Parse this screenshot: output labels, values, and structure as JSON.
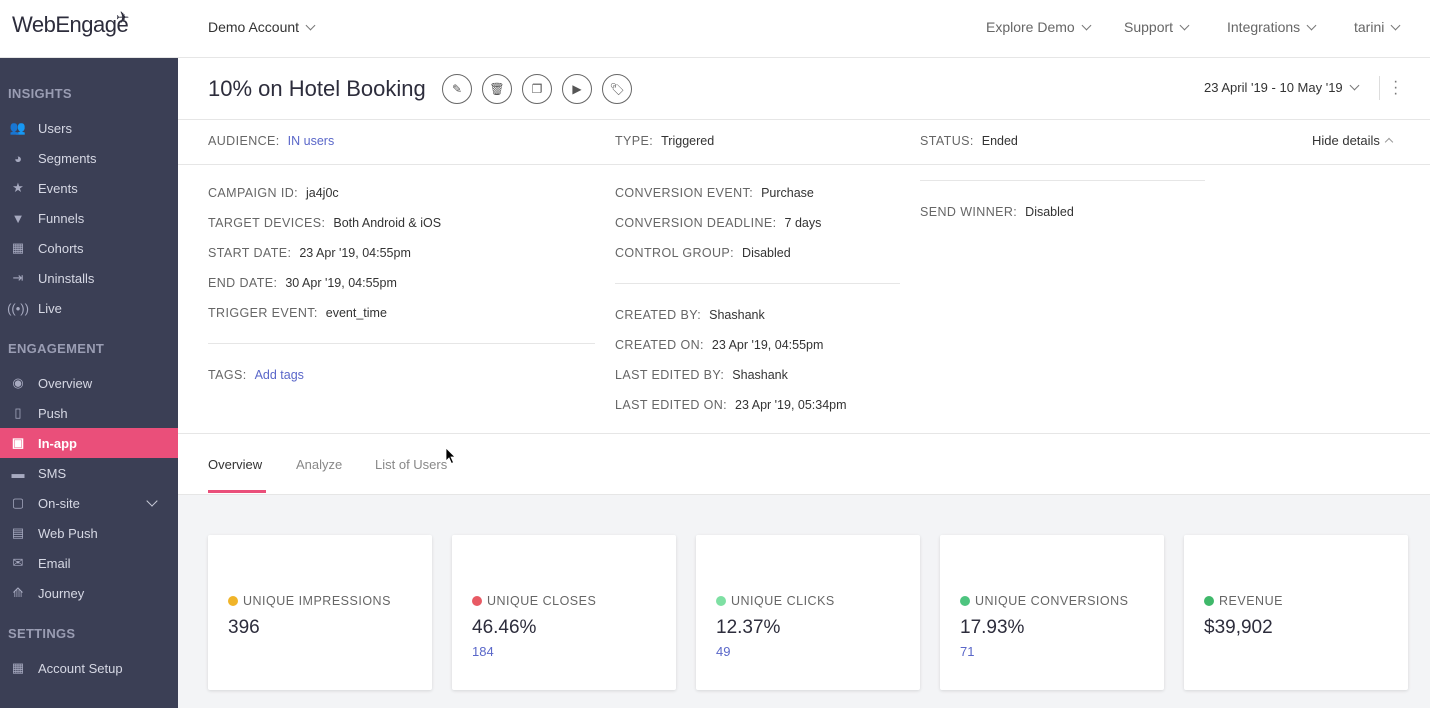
{
  "topbar": {
    "logo": "WebEngage",
    "account": "Demo Account",
    "nav": [
      "Explore Demo",
      "Support",
      "Integrations",
      "tarini"
    ]
  },
  "sidebar": {
    "sections": [
      {
        "title": "INSIGHTS",
        "items": [
          {
            "label": "Users",
            "icon": "users-icon"
          },
          {
            "label": "Segments",
            "icon": "pie-icon"
          },
          {
            "label": "Events",
            "icon": "star-icon"
          },
          {
            "label": "Funnels",
            "icon": "funnel-icon"
          },
          {
            "label": "Cohorts",
            "icon": "grid-icon"
          },
          {
            "label": "Uninstalls",
            "icon": "uninstall-icon"
          },
          {
            "label": "Live",
            "icon": "broadcast-icon"
          }
        ]
      },
      {
        "title": "ENGAGEMENT",
        "items": [
          {
            "label": "Overview",
            "icon": "eye-icon"
          },
          {
            "label": "Push",
            "icon": "mobile-icon"
          },
          {
            "label": "In-app",
            "icon": "inapp-icon",
            "active": true
          },
          {
            "label": "SMS",
            "icon": "chat-icon"
          },
          {
            "label": "On-site",
            "icon": "window-icon"
          },
          {
            "label": "Web Push",
            "icon": "webpush-icon"
          },
          {
            "label": "Email",
            "icon": "mail-icon"
          },
          {
            "label": "Journey",
            "icon": "rocket-icon"
          }
        ]
      },
      {
        "title": "SETTINGS",
        "items": [
          {
            "label": "Account Setup",
            "icon": "grid-icon"
          }
        ]
      }
    ]
  },
  "campaign": {
    "title": "10% on Hotel Booking",
    "date_range": "23 April '19 - 10 May '19",
    "audience_label": "AUDIENCE:",
    "audience_value": "IN users",
    "type_label": "TYPE:",
    "type_value": "Triggered",
    "status_label": "STATUS:",
    "status_value": "Ended",
    "hide_details": "Hide details",
    "left": [
      {
        "k": "CAMPAIGN ID:",
        "v": "ja4j0c"
      },
      {
        "k": "TARGET DEVICES:",
        "v": "Both Android & iOS"
      },
      {
        "k": "START DATE:",
        "v": "23 Apr '19, 04:55pm"
      },
      {
        "k": "END DATE:",
        "v": "30 Apr '19, 04:55pm"
      },
      {
        "k": "TRIGGER EVENT:",
        "v": "event_time"
      }
    ],
    "tags_label": "TAGS:",
    "tags_link": "Add tags",
    "mid": [
      {
        "k": "CONVERSION EVENT:",
        "v": "Purchase"
      },
      {
        "k": "CONVERSION DEADLINE:",
        "v": "7 days"
      },
      {
        "k": "CONTROL GROUP:",
        "v": "Disabled"
      }
    ],
    "mid2": [
      {
        "k": "CREATED BY:",
        "v": "Shashank"
      },
      {
        "k": "CREATED ON:",
        "v": "23 Apr '19, 04:55pm"
      },
      {
        "k": "LAST EDITED BY:",
        "v": "Shashank"
      },
      {
        "k": "LAST EDITED ON:",
        "v": "23 Apr '19, 05:34pm"
      }
    ],
    "send_winner_label": "SEND WINNER:",
    "send_winner_value": "Disabled"
  },
  "tabs": [
    "Overview",
    "Analyze",
    "List of Users"
  ],
  "cards": [
    {
      "label": "UNIQUE IMPRESSIONS",
      "value": "396",
      "sub": "",
      "color": "#f0b429"
    },
    {
      "label": "UNIQUE CLOSES",
      "value": "46.46%",
      "sub": "184",
      "color": "#e85a64"
    },
    {
      "label": "UNIQUE CLICKS",
      "value": "12.37%",
      "sub": "49",
      "color": "#7ee0a3"
    },
    {
      "label": "UNIQUE CONVERSIONS",
      "value": "17.93%",
      "sub": "71",
      "color": "#4dc47f"
    },
    {
      "label": "REVENUE",
      "value": "$39,902",
      "sub": "",
      "color": "#3fb86a"
    }
  ]
}
